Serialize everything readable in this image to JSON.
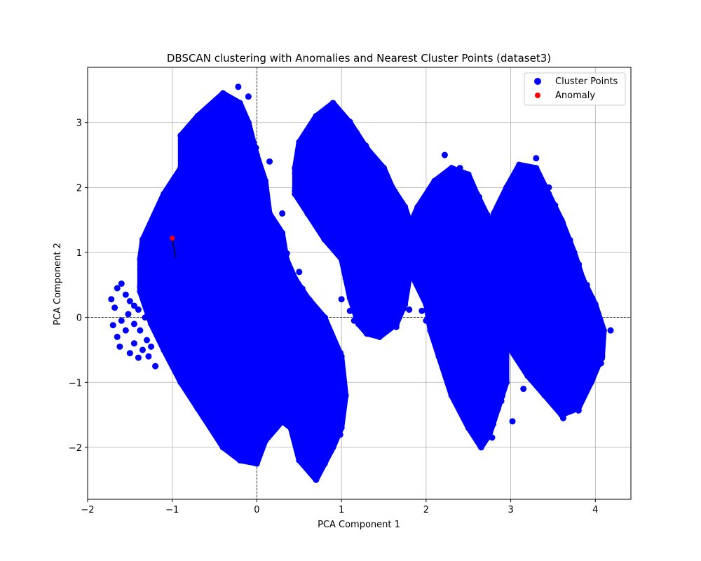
{
  "chart_data": {
    "type": "scatter",
    "title": "DBSCAN clustering with Anomalies and Nearest Cluster Points (dataset3)",
    "xlabel": "PCA Component 1",
    "ylabel": "PCA Component 2",
    "xlim": [
      -2.0,
      4.42
    ],
    "ylim": [
      -2.8,
      3.85
    ],
    "xticks": [
      -2,
      -1,
      0,
      1,
      2,
      3,
      4
    ],
    "yticks": [
      -2,
      -1,
      0,
      1,
      2,
      3
    ],
    "grid": true,
    "reference_lines": {
      "x": 0,
      "y": 0,
      "style": "dashed"
    },
    "legend": {
      "placement": "top-right",
      "entries": [
        {
          "label": "Cluster Points",
          "color": "#0000ff"
        },
        {
          "label": "Anomaly",
          "color": "#ff0000"
        }
      ]
    },
    "series": [
      {
        "name": "Cluster Points",
        "color": "#0000ff",
        "marker_size": 6,
        "regions": [
          {
            "polygon": [
              [
                -1.35,
                1.2
              ],
              [
                -1.1,
                1.9
              ],
              [
                -0.9,
                2.3
              ],
              [
                -0.9,
                2.8
              ],
              [
                -0.7,
                3.1
              ],
              [
                -0.4,
                3.45
              ],
              [
                -0.2,
                3.3
              ],
              [
                -0.1,
                3.0
              ],
              [
                0.0,
                2.5
              ],
              [
                0.1,
                2.1
              ],
              [
                0.15,
                1.6
              ],
              [
                0.3,
                1.3
              ],
              [
                0.35,
                0.9
              ],
              [
                0.45,
                0.6
              ],
              [
                0.6,
                0.3
              ],
              [
                0.8,
                0.0
              ],
              [
                1.0,
                -0.6
              ],
              [
                1.05,
                -1.2
              ],
              [
                1.0,
                -1.7
              ],
              [
                0.9,
                -2.0
              ],
              [
                0.7,
                -2.5
              ],
              [
                0.5,
                -2.2
              ],
              [
                0.4,
                -1.7
              ],
              [
                0.3,
                -1.6
              ],
              [
                0.1,
                -1.9
              ],
              [
                0.0,
                -2.25
              ],
              [
                -0.2,
                -2.2
              ],
              [
                -0.4,
                -2.0
              ],
              [
                -0.7,
                -1.4
              ],
              [
                -0.9,
                -1.0
              ],
              [
                -1.1,
                -0.5
              ],
              [
                -1.25,
                -0.1
              ],
              [
                -1.38,
                0.4
              ],
              [
                -1.38,
                0.9
              ]
            ]
          },
          {
            "polygon": [
              [
                0.45,
                2.3
              ],
              [
                0.5,
                2.7
              ],
              [
                0.7,
                3.1
              ],
              [
                0.9,
                3.3
              ],
              [
                1.1,
                3.0
              ],
              [
                1.3,
                2.6
              ],
              [
                1.5,
                2.3
              ],
              [
                1.6,
                2.0
              ],
              [
                1.75,
                1.7
              ],
              [
                1.85,
                1.3
              ],
              [
                1.8,
                0.9
              ],
              [
                1.8,
                0.6
              ],
              [
                1.75,
                0.2
              ],
              [
                1.65,
                -0.1
              ],
              [
                1.45,
                -0.3
              ],
              [
                1.3,
                -0.25
              ],
              [
                1.2,
                -0.1
              ],
              [
                1.1,
                0.3
              ],
              [
                1.05,
                0.6
              ],
              [
                1.0,
                0.9
              ],
              [
                0.8,
                1.2
              ],
              [
                0.6,
                1.6
              ],
              [
                0.45,
                1.9
              ]
            ]
          },
          {
            "polygon": [
              [
                1.8,
                1.4
              ],
              [
                1.9,
                1.7
              ],
              [
                2.1,
                2.1
              ],
              [
                2.3,
                2.3
              ],
              [
                2.5,
                2.2
              ],
              [
                2.6,
                1.9
              ],
              [
                2.75,
                1.5
              ],
              [
                2.85,
                1.2
              ],
              [
                2.8,
                0.8
              ],
              [
                2.75,
                0.4
              ],
              [
                2.85,
                0.0
              ],
              [
                2.95,
                -0.5
              ],
              [
                2.95,
                -1.0
              ],
              [
                2.85,
                -1.4
              ],
              [
                2.75,
                -1.8
              ],
              [
                2.65,
                -2.0
              ],
              [
                2.5,
                -1.7
              ],
              [
                2.3,
                -1.2
              ],
              [
                2.15,
                -0.6
              ],
              [
                2.05,
                -0.2
              ],
              [
                2.0,
                0.2
              ],
              [
                1.85,
                0.6
              ],
              [
                1.8,
                1.0
              ]
            ]
          },
          {
            "polygon": [
              [
                2.7,
                1.0
              ],
              [
                2.8,
                1.6
              ],
              [
                2.95,
                2.0
              ],
              [
                3.1,
                2.35
              ],
              [
                3.3,
                2.3
              ],
              [
                3.45,
                1.9
              ],
              [
                3.6,
                1.5
              ],
              [
                3.75,
                1.0
              ],
              [
                3.85,
                0.6
              ],
              [
                4.0,
                0.2
              ],
              [
                4.1,
                -0.2
              ],
              [
                4.08,
                -0.6
              ],
              [
                3.95,
                -1.0
              ],
              [
                3.8,
                -1.4
              ],
              [
                3.6,
                -1.5
              ],
              [
                3.4,
                -1.2
              ],
              [
                3.2,
                -0.9
              ],
              [
                3.0,
                -0.5
              ],
              [
                2.9,
                -0.1
              ],
              [
                2.8,
                0.4
              ]
            ]
          }
        ],
        "outliers": [
          [
            -1.72,
            0.28
          ],
          [
            -1.65,
            0.45
          ],
          [
            -1.6,
            0.52
          ],
          [
            -1.55,
            0.35
          ],
          [
            -1.5,
            0.25
          ],
          [
            -1.45,
            0.18
          ],
          [
            -1.4,
            0.12
          ],
          [
            -1.7,
            -0.12
          ],
          [
            -1.65,
            -0.3
          ],
          [
            -1.62,
            -0.45
          ],
          [
            -1.55,
            -0.2
          ],
          [
            -1.5,
            -0.55
          ],
          [
            -1.45,
            -0.4
          ],
          [
            -1.4,
            -0.62
          ],
          [
            -1.35,
            -0.5
          ],
          [
            -1.3,
            -0.35
          ],
          [
            -1.25,
            -0.45
          ],
          [
            -1.2,
            -0.75
          ],
          [
            -1.28,
            -0.6
          ],
          [
            -1.6,
            -0.05
          ],
          [
            -1.52,
            0.05
          ],
          [
            -1.45,
            -0.1
          ],
          [
            -1.38,
            -0.2
          ],
          [
            -1.32,
            0.0
          ],
          [
            -1.68,
            0.15
          ],
          [
            -0.22,
            3.55
          ],
          [
            -0.1,
            3.4
          ],
          [
            0.15,
            2.4
          ],
          [
            0.3,
            1.6
          ],
          [
            0.5,
            0.7
          ],
          [
            1.0,
            0.28
          ],
          [
            1.1,
            0.1
          ],
          [
            1.15,
            -0.05
          ],
          [
            1.05,
            0.95
          ],
          [
            0.85,
            1.25
          ],
          [
            0.65,
            1.75
          ],
          [
            1.8,
            0.12
          ],
          [
            1.95,
            0.1
          ],
          [
            2.0,
            -0.05
          ],
          [
            2.22,
            2.5
          ],
          [
            2.4,
            2.3
          ],
          [
            2.55,
            1.95
          ],
          [
            3.3,
            2.45
          ],
          [
            3.45,
            2.0
          ],
          [
            3.15,
            -1.1
          ],
          [
            3.02,
            -1.6
          ],
          [
            2.78,
            -1.85
          ],
          [
            3.62,
            -1.55
          ],
          [
            3.9,
            0.5
          ],
          [
            4.18,
            -0.2
          ],
          [
            4.05,
            -0.7
          ],
          [
            3.75,
            0.8
          ],
          [
            2.55,
            0.55
          ],
          [
            2.65,
            0.3
          ]
        ]
      },
      {
        "name": "Anomaly",
        "color": "#ff0000",
        "marker_size": 5,
        "points": [
          [
            -1.0,
            1.22
          ]
        ]
      }
    ],
    "nearest_links": [
      {
        "from": [
          -1.0,
          1.22
        ],
        "to": [
          -0.96,
          0.92
        ],
        "color": "#000000"
      }
    ]
  }
}
